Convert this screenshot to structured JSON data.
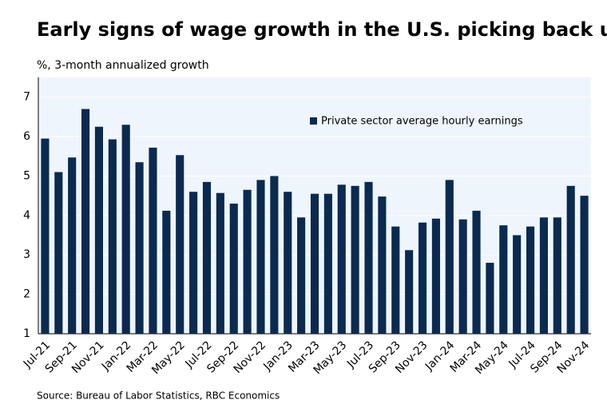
{
  "chart_data": {
    "type": "bar",
    "title": "Early signs of wage growth in the U.S. picking back up",
    "y_label": "%, 3-month annualized growth",
    "source": "Source: Bureau of Labor Statistics, RBC Economics",
    "categories": [
      "Jul-21",
      null,
      "Sep-21",
      null,
      "Nov-21",
      null,
      "Jan-22",
      null,
      "Mar-22",
      null,
      "May-22",
      null,
      "Jul-22",
      null,
      "Sep-22",
      null,
      "Nov-22",
      null,
      "Jan-23",
      null,
      "Mar-23",
      null,
      "May-23",
      null,
      "Jul-23",
      null,
      "Sep-23",
      null,
      "Nov-23",
      null,
      "Jan-24",
      null,
      "Mar-24",
      null,
      "May-24",
      null,
      "Jul-24",
      null,
      "Sep-24",
      null,
      "Nov-24"
    ],
    "series": [
      {
        "name": "Private sector average hourly earnings",
        "color": "#0b2a4f",
        "values": [
          5.95,
          5.1,
          5.47,
          6.7,
          6.25,
          5.93,
          6.3,
          5.35,
          5.72,
          4.12,
          5.53,
          4.6,
          4.85,
          4.57,
          4.3,
          4.65,
          4.9,
          5.0,
          4.6,
          3.95,
          4.55,
          4.55,
          4.78,
          4.75,
          4.85,
          4.48,
          3.72,
          3.12,
          3.82,
          3.92,
          4.9,
          3.9,
          4.12,
          2.8,
          3.75,
          3.5,
          3.72,
          3.95,
          3.95,
          4.75,
          4.5
        ]
      }
    ],
    "ylim": [
      1,
      7.5
    ],
    "yticks": [
      1,
      2,
      3,
      4,
      5,
      6,
      7
    ],
    "grid": true,
    "legend": "top-right"
  }
}
